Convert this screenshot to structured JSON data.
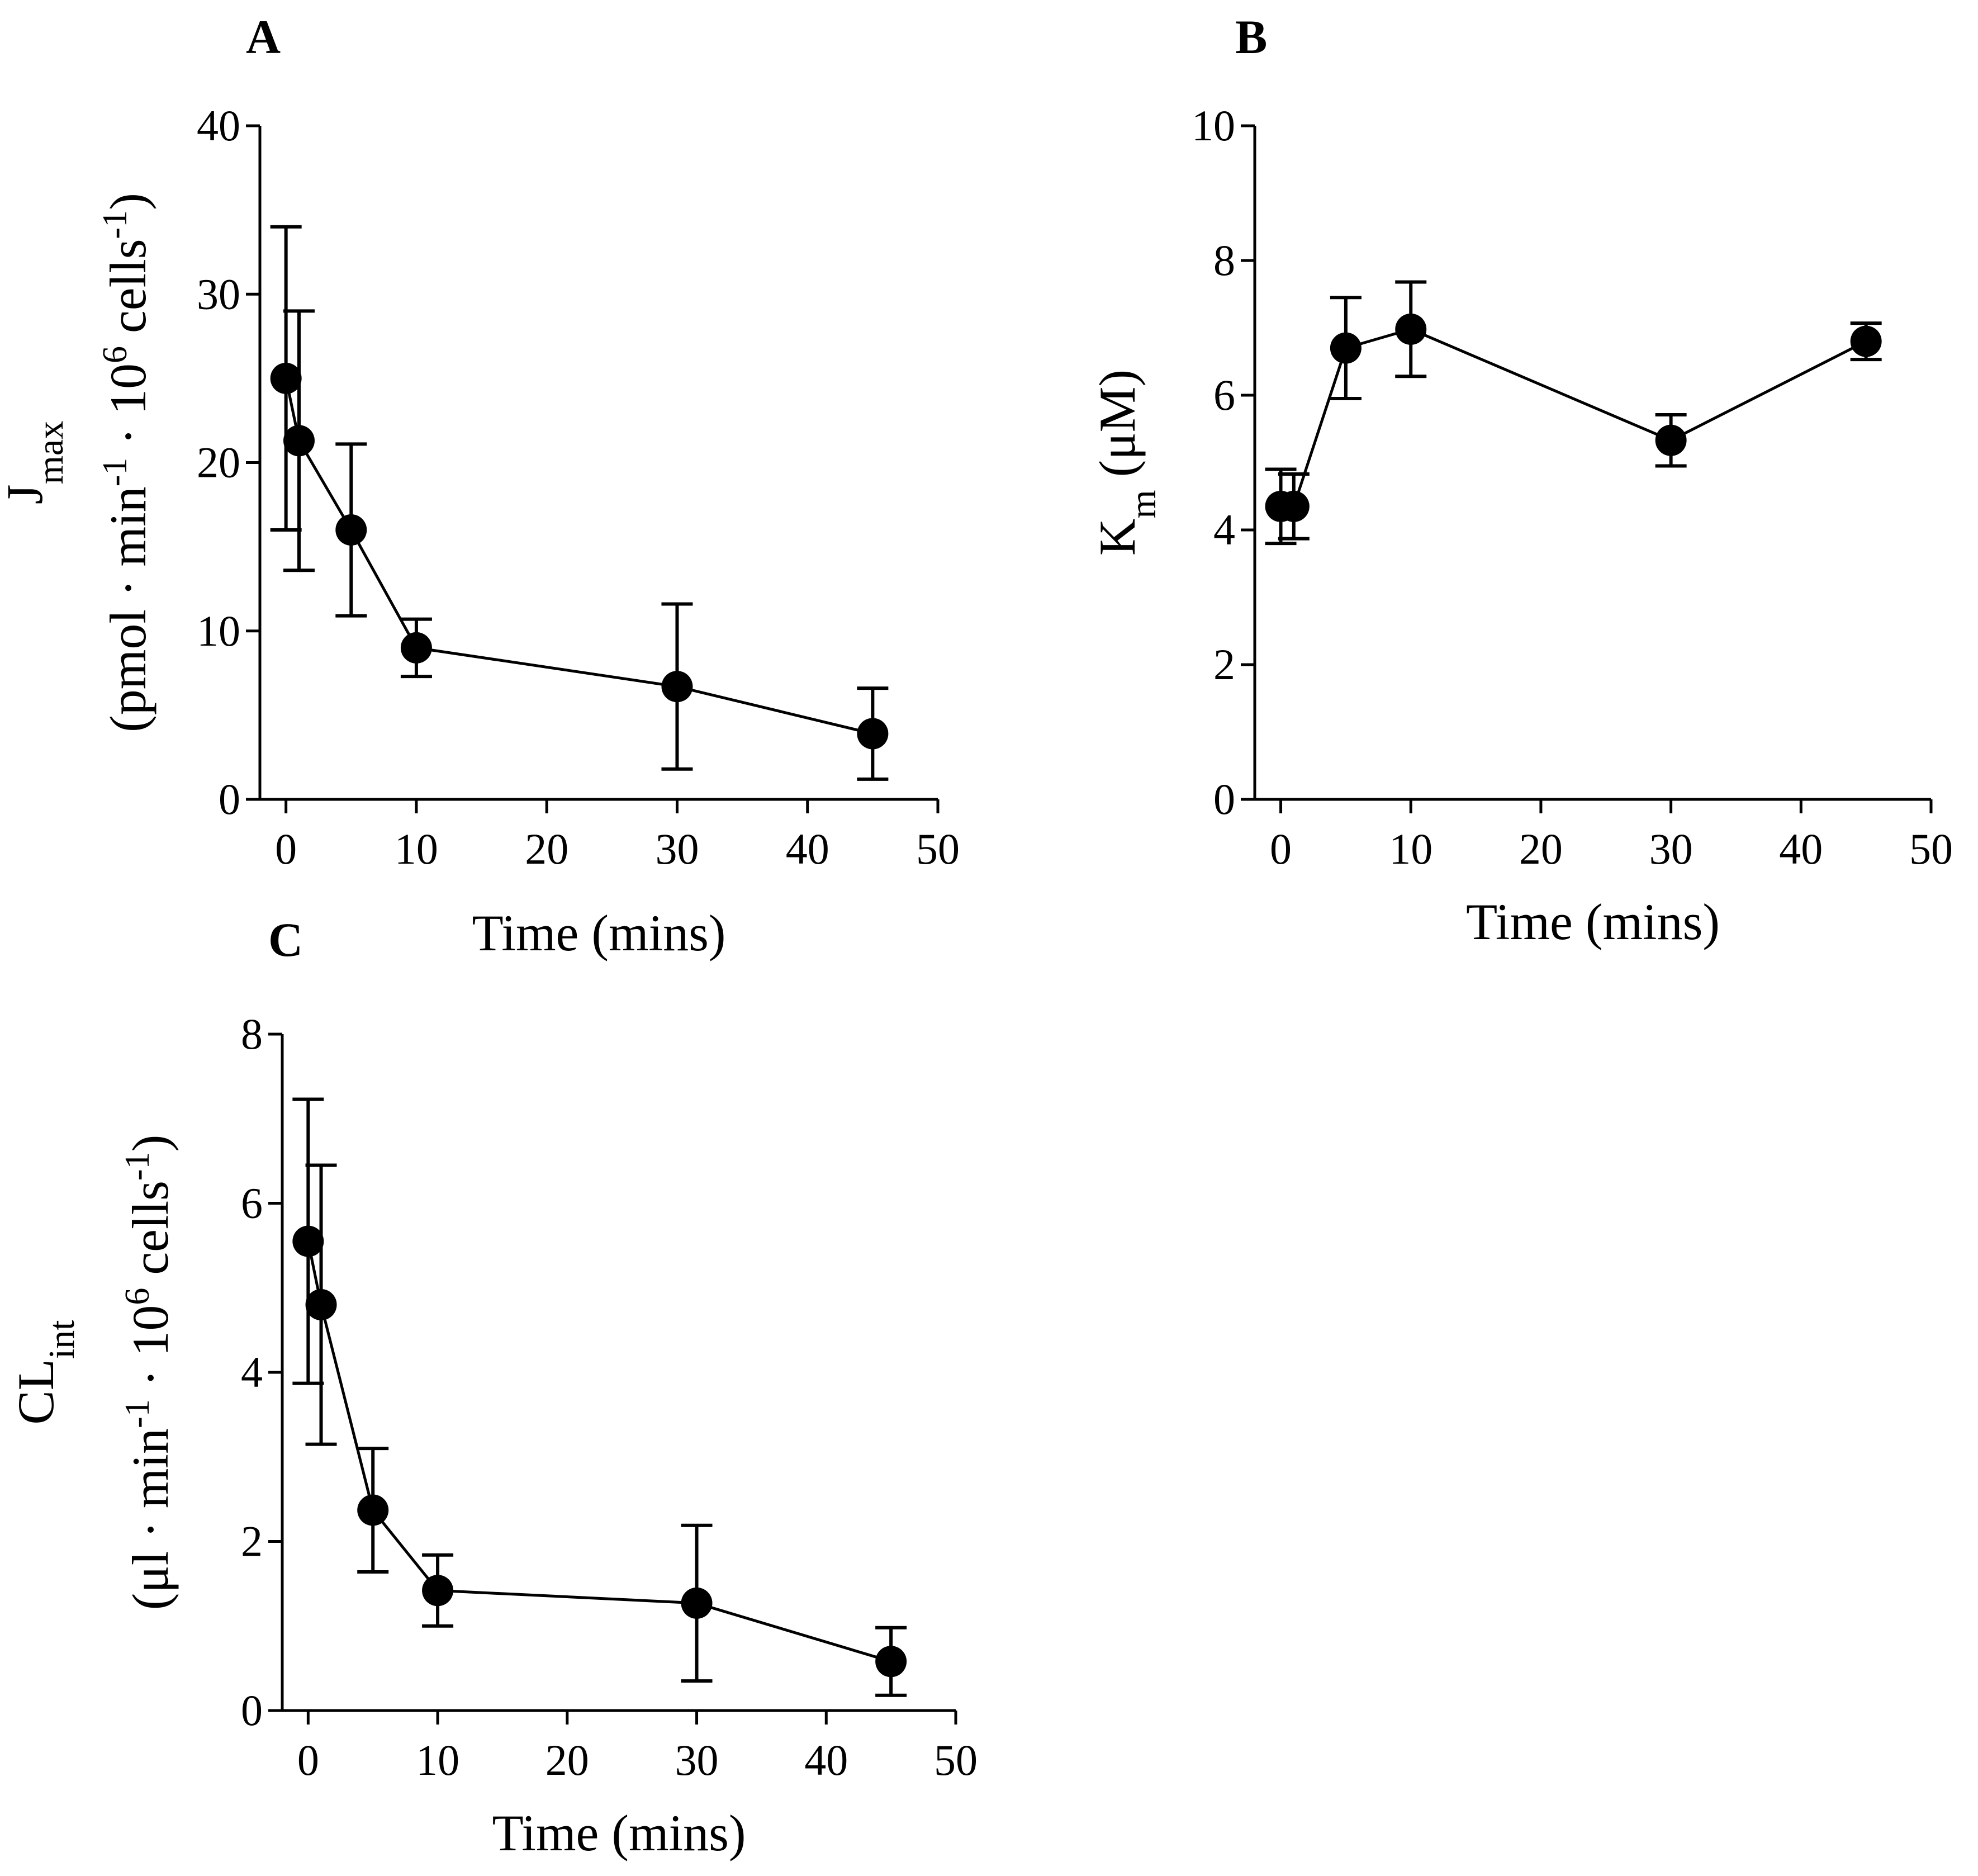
{
  "chart_data": [
    {
      "type": "scatter",
      "panel_label": "A",
      "x": [
        0,
        1,
        5,
        10,
        30,
        45
      ],
      "series": [
        {
          "values": [
            25.0,
            21.3,
            16.0,
            9.0,
            6.7,
            3.9
          ],
          "error": [
            9.0,
            7.7,
            5.1,
            1.7,
            4.9,
            2.7
          ]
        }
      ],
      "title": "",
      "xlabel": "Time (mins)",
      "ylabel_main": "J",
      "ylabel_sub": "max",
      "ylabel_units": [
        "(pmol · min",
        "-1",
        " · 10",
        "6",
        " cells",
        "-1",
        ")"
      ],
      "xlim": [
        -2,
        50
      ],
      "ylim": [
        0,
        40
      ],
      "xticks": [
        "0",
        "10",
        "20",
        "30",
        "40",
        "50"
      ],
      "yticks": [
        "0",
        "10",
        "20",
        "30",
        "40"
      ],
      "grid": false
    },
    {
      "type": "scatter",
      "panel_label": "B",
      "x": [
        0,
        1,
        5,
        10,
        30,
        45
      ],
      "series": [
        {
          "values": [
            4.35,
            4.35,
            6.7,
            6.98,
            5.33,
            6.8
          ],
          "error": [
            0.55,
            0.48,
            0.75,
            0.7,
            0.38,
            0.27
          ]
        }
      ],
      "title": "",
      "xlabel": "Time (mins)",
      "ylabel_main": "K",
      "ylabel_sub": "m",
      "ylabel_units": [
        "(μM)"
      ],
      "xlim": [
        -2,
        50
      ],
      "ylim": [
        0,
        10
      ],
      "xticks": [
        "0",
        "10",
        "20",
        "30",
        "40",
        "50"
      ],
      "yticks": [
        "0",
        "2",
        "4",
        "6",
        "8",
        "10"
      ],
      "grid": false
    },
    {
      "type": "scatter",
      "panel_label": "C",
      "x": [
        0,
        1,
        5,
        10,
        30,
        45
      ],
      "series": [
        {
          "values": [
            5.55,
            4.8,
            2.37,
            1.42,
            1.27,
            0.58
          ],
          "error": [
            1.68,
            1.65,
            0.73,
            0.42,
            0.92,
            0.4
          ]
        }
      ],
      "title": "",
      "xlabel": "Time (mins)",
      "ylabel_main": "CL",
      "ylabel_sub": "int",
      "ylabel_units": [
        "(μl · min",
        "-1",
        " · 10",
        "6",
        " cells",
        "-1",
        ")"
      ],
      "xlim": [
        -2,
        50
      ],
      "ylim": [
        0,
        8
      ],
      "xticks": [
        "0",
        "10",
        "20",
        "30",
        "40",
        "50"
      ],
      "yticks": [
        "0",
        "2",
        "4",
        "6",
        "8"
      ],
      "grid": false
    }
  ]
}
